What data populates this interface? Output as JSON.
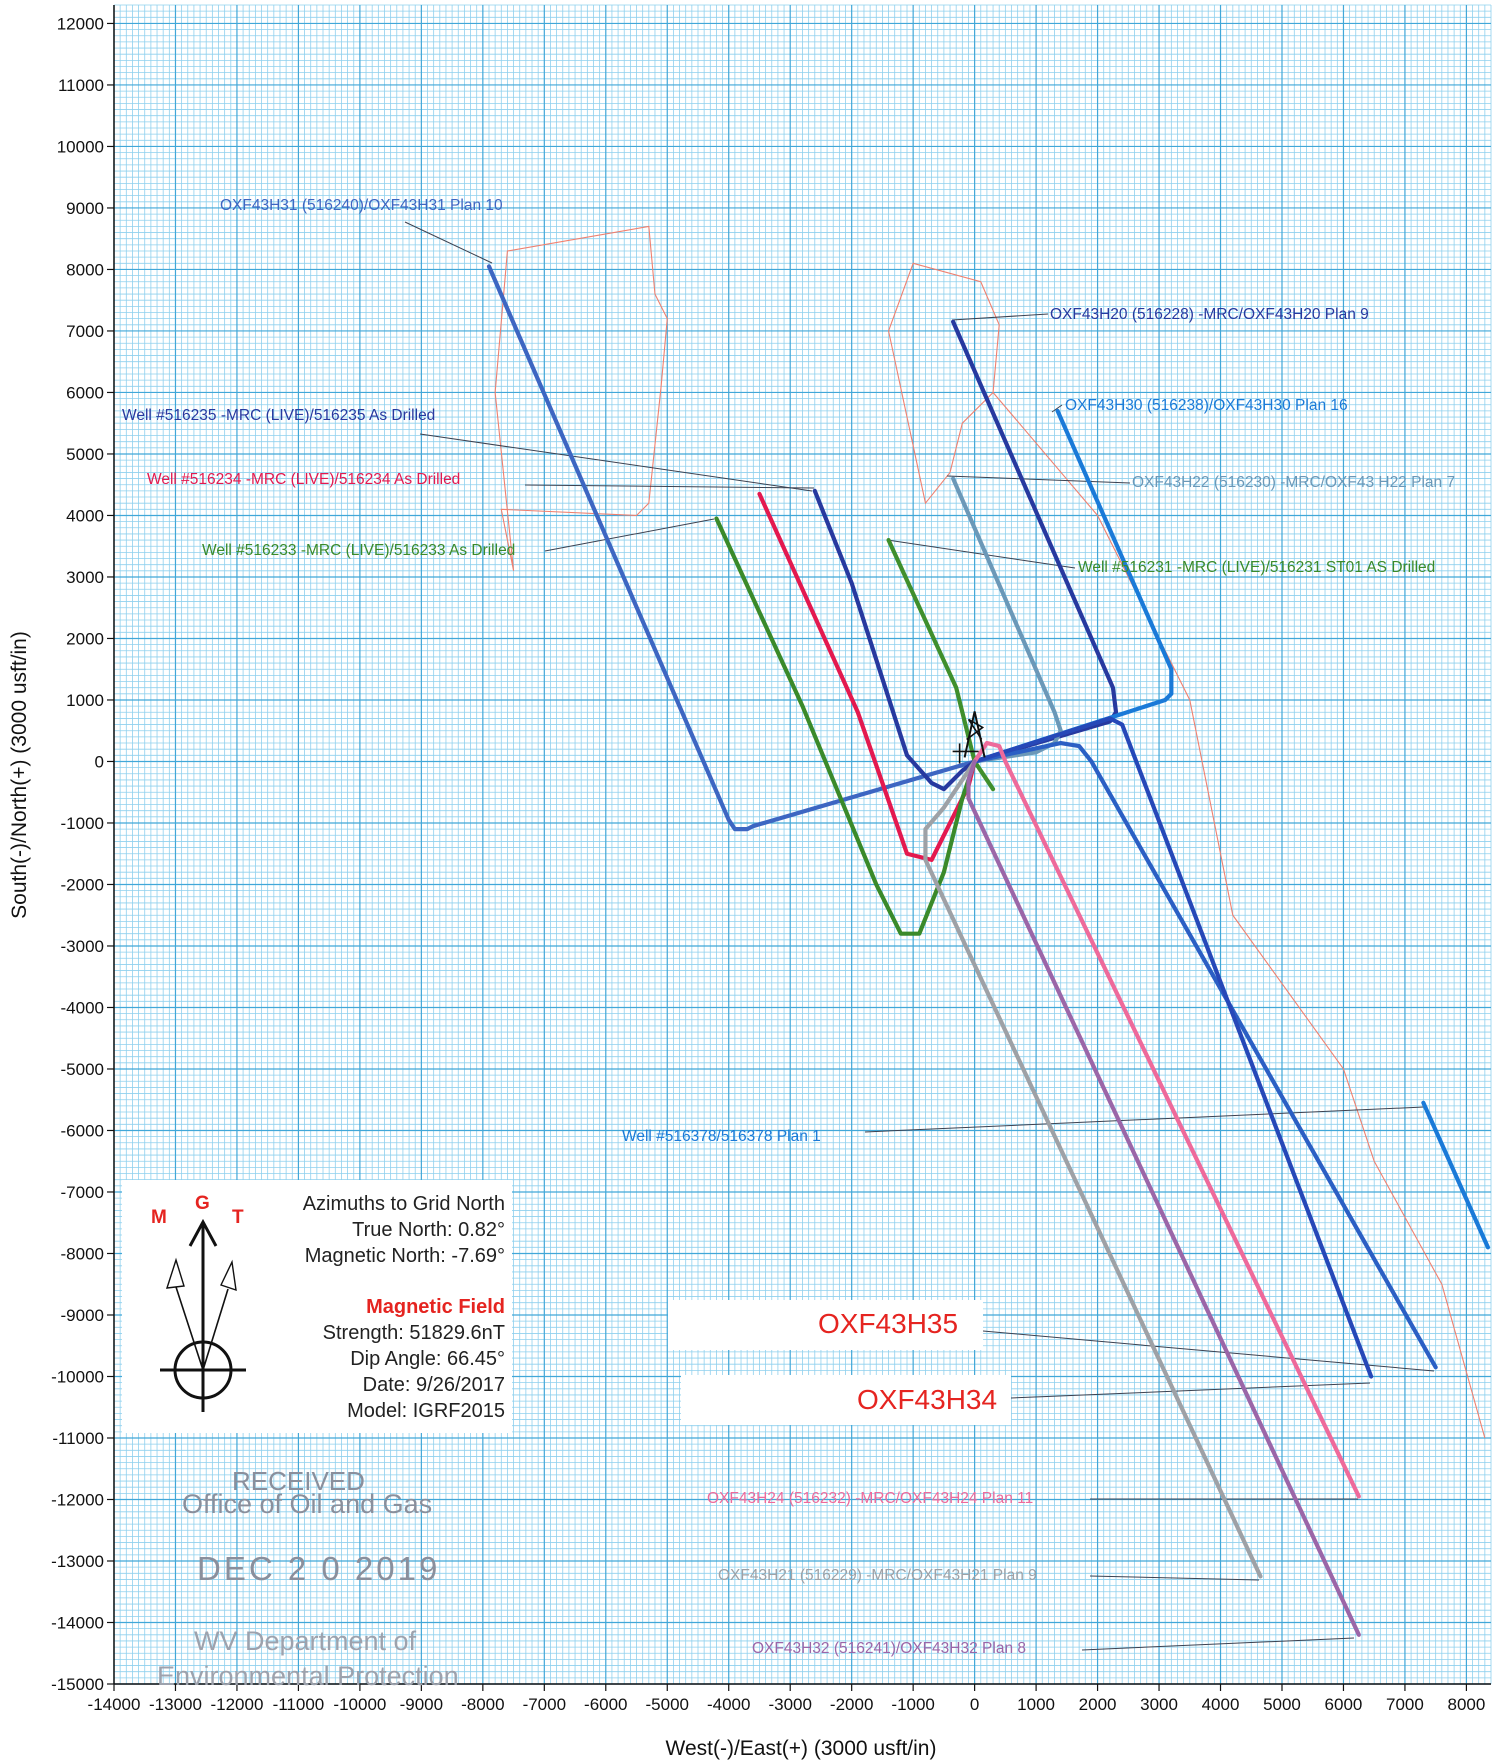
{
  "chart_data": {
    "type": "line",
    "xlabel": "West(-)/East(+) (3000 usft/in)",
    "ylabel": "South(-)/North(+) (3000 usft/in)",
    "xlim": [
      -14000,
      8400
    ],
    "ylim": [
      -15000,
      12300
    ],
    "x_ticks": [
      -14000,
      -13000,
      -12000,
      -11000,
      -10000,
      -9000,
      -8000,
      -7000,
      -6000,
      -5000,
      -4000,
      -3000,
      -2000,
      -1000,
      0,
      1000,
      2000,
      3000,
      4000,
      5000,
      6000,
      7000,
      8000
    ],
    "y_ticks": [
      12000,
      11000,
      10000,
      9000,
      8000,
      7000,
      6000,
      5000,
      4000,
      3000,
      2000,
      1000,
      0,
      -1000,
      -2000,
      -3000,
      -4000,
      -5000,
      -6000,
      -7000,
      -8000,
      -9000,
      -10000,
      -11000,
      -12000,
      -13000,
      -14000,
      -15000
    ],
    "grid": true,
    "series": [
      {
        "name": "OXF43H31 (516240)/OXF43H31 Plan 10",
        "color": "#3d66c2",
        "x": [
          0,
          -3600,
          -3700,
          -3900,
          -4000,
          -7900
        ],
        "y": [
          0,
          -1050,
          -1100,
          -1100,
          -950,
          8050
        ]
      },
      {
        "name": "Well #516235 -MRC (LIVE)/516235 As Drilled",
        "color": "#27399f",
        "x": [
          0,
          -200,
          -500,
          -700,
          -1100,
          -2000,
          -2600
        ],
        "y": [
          0,
          -150,
          -450,
          -350,
          100,
          2900,
          4400
        ]
      },
      {
        "name": "Well #516234 -MRC (LIVE)/516234 As Drilled",
        "color": "#e3194f",
        "x": [
          0,
          -100,
          -350,
          -700,
          -1100,
          -1900,
          -3500
        ],
        "y": [
          0,
          -400,
          -900,
          -1600,
          -1500,
          800,
          4350
        ]
      },
      {
        "name": "Well #516233 -MRC (LIVE)/516233 As Drilled",
        "color": "#3a8a2a",
        "x": [
          0,
          -200,
          -500,
          -900,
          -1200,
          -1600,
          -2800,
          -4200
        ],
        "y": [
          0,
          -600,
          -1800,
          -2800,
          -2800,
          -2000,
          900,
          3950
        ]
      },
      {
        "name": "Well #516231 -MRC (LIVE)/516231 ST01 AS Drilled",
        "color": "#3f8f2d",
        "x": [
          300,
          0,
          -300,
          -1400
        ],
        "y": [
          -450,
          0,
          1200,
          3600
        ]
      },
      {
        "name": "OXF43H20 (516228) -MRC/OXF43H20 Plan 9",
        "color": "#27399f",
        "x": [
          0,
          2200,
          2300,
          2250,
          -350
        ],
        "y": [
          0,
          650,
          800,
          1200,
          7150
        ]
      },
      {
        "name": "OXF43H30 (516238)/OXF43H30 Plan 16",
        "color": "#1a7ad8",
        "x": [
          0,
          3100,
          3200,
          3200,
          1350
        ],
        "y": [
          0,
          1000,
          1100,
          1500,
          5700
        ]
      },
      {
        "name": "OXF43H22 (516230) -MRC/OXF43 H22 Plan 7",
        "color": "#6b98b8",
        "x": [
          0,
          1000,
          1300,
          1400,
          1300,
          -350
        ],
        "y": [
          0,
          150,
          300,
          500,
          800,
          4600
        ]
      },
      {
        "name": "Well #516378/516378 Plan 1",
        "color": "#1a7ad8",
        "x": [
          7300,
          8350
        ],
        "y": [
          -5550,
          -7900
        ]
      },
      {
        "name": "OXF43H35",
        "color": "#2b5fc4",
        "x": [
          0,
          1400,
          1700,
          1900,
          7500
        ],
        "y": [
          0,
          300,
          250,
          0,
          -9850
        ]
      },
      {
        "name": "OXF43H34",
        "color": "#2648b8",
        "x": [
          0,
          2200,
          2400,
          6450
        ],
        "y": [
          0,
          700,
          600,
          -10000
        ]
      },
      {
        "name": "OXF43H24 (516232) -MRC/OXF43H24 Plan 11",
        "color": "#ee6a9b",
        "x": [
          0,
          200,
          400,
          500,
          6250
        ],
        "y": [
          0,
          300,
          250,
          0,
          -11950
        ]
      },
      {
        "name": "OXF43H21 (516229) -MRC/OXF43H21 Plan 9",
        "color": "#9ea1a6",
        "x": [
          0,
          -500,
          -800,
          -800,
          4650
        ],
        "y": [
          0,
          -750,
          -1100,
          -1600,
          -13250
        ]
      },
      {
        "name": "OXF43H32 (516241)/OXF43H32 Plan 8",
        "color": "#9b66a8",
        "x": [
          0,
          -100,
          -100,
          6250
        ],
        "y": [
          0,
          -300,
          -600,
          -14200
        ]
      }
    ],
    "labels": [
      {
        "text": "OXF43H31 (516240)/OXF43H31 Plan 10",
        "color": "#3d66c2"
      },
      {
        "text": "OXF43H20 (516228) -MRC/OXF43H20 Plan 9",
        "color": "#27399f"
      },
      {
        "text": "Well #516235 -MRC (LIVE)/516235 As Drilled",
        "color": "#27399f"
      },
      {
        "text": "OXF43H30 (516238)/OXF43H30 Plan 16",
        "color": "#1a7ad8"
      },
      {
        "text": "Well #516234 -MRC (LIVE)/516234 As Drilled",
        "color": "#e3194f"
      },
      {
        "text": "OXF43H22 (516230) -MRC/OXF43 H22 Plan 7",
        "color": "#6b98b8"
      },
      {
        "text": "Well #516233 -MRC (LIVE)/516233 As Drilled",
        "color": "#3a8a2a"
      },
      {
        "text": "Well #516231 -MRC (LIVE)/516231 ST01 AS Drilled",
        "color": "#3a8a2a"
      },
      {
        "text": "Well #516378/516378 Plan 1",
        "color": "#1a7ad8"
      },
      {
        "text": "OXF43H24 (516232) -MRC/OXF43H24 Plan 11",
        "color": "#ee6a9b"
      },
      {
        "text": "OXF43H21 (516229) -MRC/OXF43H21 Plan 9",
        "color": "#9ea1a6"
      },
      {
        "text": "OXF43H32 (516241)/OXF43H32 Plan 8",
        "color": "#9b66a8"
      }
    ],
    "big_labels": [
      "OXF43H35",
      "OXF43H34"
    ],
    "lease_outlines": [
      {
        "color": "#f0806f",
        "x": [
          -7500,
          -7800,
          -7600,
          -5300,
          -5200,
          -5000,
          -5100,
          -5300,
          -5500,
          -7700,
          -7500
        ],
        "y": [
          3100,
          6000,
          8300,
          8700,
          7600,
          7200,
          6100,
          4200,
          4000,
          4100,
          3100
        ]
      },
      {
        "color": "#f0806f",
        "x": [
          -1400,
          -1000,
          100,
          400,
          300,
          -200,
          -400,
          -800,
          -1400
        ],
        "y": [
          7000,
          8100,
          7800,
          7100,
          6000,
          5500,
          4700,
          4200,
          7000
        ]
      },
      {
        "color": "#f0806f",
        "x": [
          300,
          2000,
          3500,
          4200,
          6000,
          6500,
          7600,
          8300
        ],
        "y": [
          6000,
          4000,
          1000,
          -2500,
          -5000,
          -6500,
          -8500,
          -11000
        ]
      }
    ]
  },
  "legend": {
    "compass_letters": [
      "M",
      "G",
      "T"
    ],
    "title": "Azimuths to Grid North",
    "true_north": "True North: 0.82°",
    "magnetic_north": "Magnetic North: -7.69°",
    "field_title": "Magnetic Field",
    "strength": "Strength: 51829.6nT",
    "dip": "Dip Angle: 66.45°",
    "date": "Date: 9/26/2017",
    "model": "Model: IGRF2015"
  },
  "stamp": {
    "line1": "RECEIVED",
    "line2": "Office of Oil and Gas",
    "line3": "DEC 2 0 2019",
    "line4": "WV Department of",
    "line5": "Environmental Protection"
  }
}
